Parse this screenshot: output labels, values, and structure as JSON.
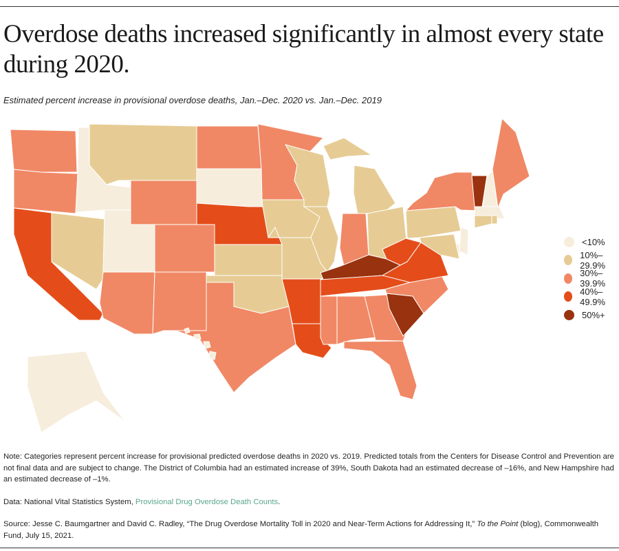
{
  "title": "Overdose deaths increased significantly in almost every state during 2020.",
  "subtitle": "Estimated percent increase in provisional overdose deaths, Jan.–Dec. 2020 vs. Jan.–Dec. 2019",
  "legend": [
    {
      "label": "<10%",
      "color": "#f6eddc"
    },
    {
      "label": "10%–29.9%",
      "color": "#e6cc94"
    },
    {
      "label": "30%–39.9%",
      "color": "#f08865"
    },
    {
      "label": "40%–49.9%",
      "color": "#e44d1a"
    },
    {
      "label": "50%+",
      "color": "#98320f"
    }
  ],
  "states": {
    "WA": 2,
    "OR": 2,
    "CA": 3,
    "NV": 1,
    "ID": 0,
    "MT": 1,
    "WY": 2,
    "UT": 0,
    "AZ": 2,
    "CO": 2,
    "NM": 2,
    "ND": 2,
    "SD": 0,
    "NE": 3,
    "KS": 1,
    "OK": 1,
    "TX": 2,
    "MN": 2,
    "IA": 1,
    "MO": 1,
    "AR": 3,
    "LA": 3,
    "WI": 1,
    "IL": 1,
    "MI": 1,
    "IN": 2,
    "OH": 1,
    "KY": 4,
    "TN": 3,
    "MS": 2,
    "AL": 2,
    "GA": 2,
    "FL": 2,
    "SC": 4,
    "NC": 2,
    "VA": 3,
    "WV": 3,
    "PA": 1,
    "NY": 2,
    "VT": 4,
    "NH": 0,
    "ME": 2,
    "MA": 0,
    "RI": 1,
    "CT": 1,
    "NJ": 0,
    "DE": 0,
    "MD": 1,
    "AK": 0,
    "HI": 0
  },
  "notes": {
    "note": "Note: Categories represent percent increase for provisional predicted overdose deaths in 2020 vs. 2019. Predicted totals from the Centers for Disease Control and Prevention are not final data and are subject to change. The District of Columbia had an estimated increase of 39%, South Dakota had an estimated decrease of –16%, and New Hampshire had an estimated decrease of –1%.",
    "data_prefix": "Data: National Vital Statistics System, ",
    "data_link": "Provisional Drug Overdose Death Counts",
    "data_suffix": ".",
    "source_prefix": "Source: Jesse C. Baumgartner and David C. Radley, “The Drug Overdose Mortality Toll in 2020 and Near-Term Actions for Addressing It,” ",
    "source_italic": "To the Point",
    "source_suffix": " (blog), Commonwealth Fund, July 15, 2021."
  }
}
